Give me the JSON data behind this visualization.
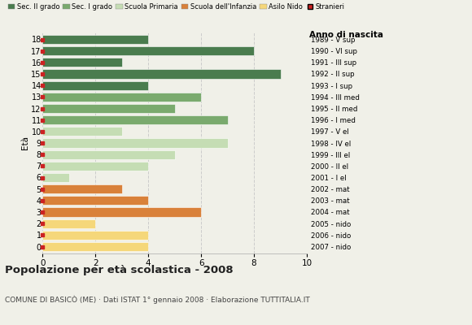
{
  "ages": [
    18,
    17,
    16,
    15,
    14,
    13,
    12,
    11,
    10,
    9,
    8,
    7,
    6,
    5,
    4,
    3,
    2,
    1,
    0
  ],
  "birth_years": [
    "1989 - V sup",
    "1990 - VI sup",
    "1991 - III sup",
    "1992 - II sup",
    "1993 - I sup",
    "1994 - III med",
    "1995 - II med",
    "1996 - I med",
    "1997 - V el",
    "1998 - IV el",
    "1999 - III el",
    "2000 - II el",
    "2001 - I el",
    "2002 - mat",
    "2003 - mat",
    "2004 - mat",
    "2005 - nido",
    "2006 - nido",
    "2007 - nido"
  ],
  "values": [
    4,
    8,
    3,
    9,
    4,
    6,
    5,
    7,
    3,
    7,
    5,
    4,
    1,
    3,
    4,
    6,
    2,
    4,
    4
  ],
  "bar_colors": [
    "#4a7c4e",
    "#4a7c4e",
    "#4a7c4e",
    "#4a7c4e",
    "#4a7c4e",
    "#7aaa6e",
    "#7aaa6e",
    "#7aaa6e",
    "#c5ddb4",
    "#c5ddb4",
    "#c5ddb4",
    "#c5ddb4",
    "#c5ddb4",
    "#d9813a",
    "#d9813a",
    "#d9813a",
    "#f5d77a",
    "#f5d77a",
    "#f5d77a"
  ],
  "legend_labels": [
    "Sec. II grado",
    "Sec. I grado",
    "Scuola Primaria",
    "Scuola dell'Infanzia",
    "Asilo Nido",
    "Stranieri"
  ],
  "legend_colors": [
    "#4a7c4e",
    "#7aaa6e",
    "#c5ddb4",
    "#d9813a",
    "#f5d77a",
    "#cc2222"
  ],
  "title": "Popolazione per età scolastica - 2008",
  "subtitle": "COMUNE DI BASICÒ (ME) · Dati ISTAT 1° gennaio 2008 · Elaborazione TUTTITALIA.IT",
  "eta_label": "Età",
  "anno_label": "Anno di nascita",
  "xlim": [
    0,
    10
  ],
  "xticks": [
    0,
    2,
    4,
    6,
    8,
    10
  ],
  "bg_color": "#f0f0e8",
  "grid_color": "#cccccc",
  "bar_height": 0.78
}
